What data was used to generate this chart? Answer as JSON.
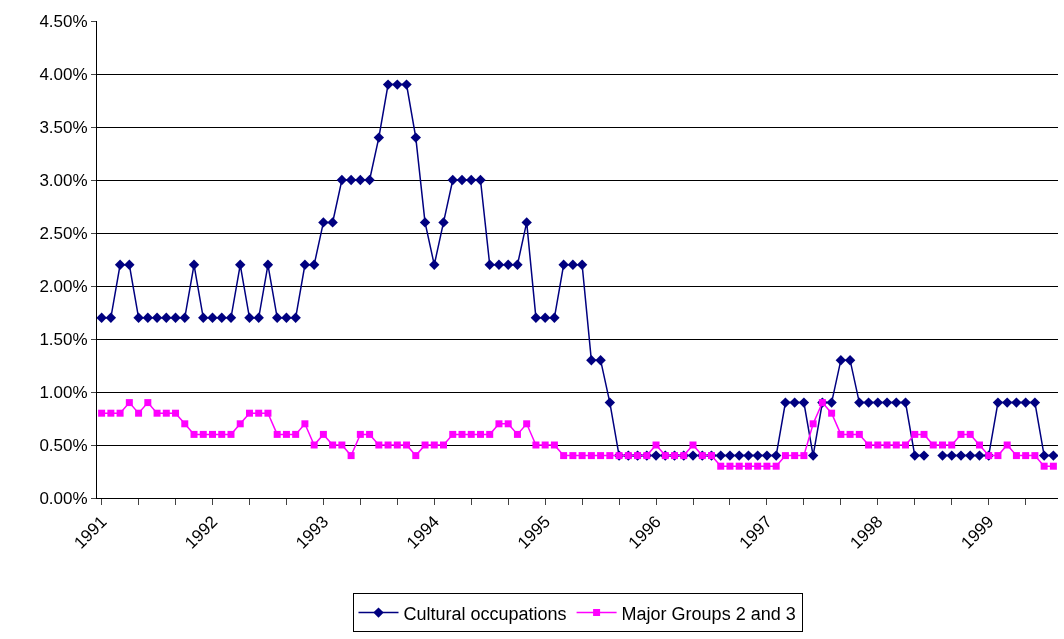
{
  "chart_data": {
    "type": "line",
    "categories": [
      "1991",
      null,
      null,
      null,
      null,
      null,
      null,
      null,
      null,
      null,
      null,
      null,
      "1992",
      null,
      null,
      null,
      null,
      null,
      null,
      null,
      null,
      null,
      null,
      null,
      "1993",
      null,
      null,
      null,
      null,
      null,
      null,
      null,
      null,
      null,
      null,
      null,
      "1994",
      null,
      null,
      null,
      null,
      null,
      null,
      null,
      null,
      null,
      null,
      null,
      "1995",
      null,
      null,
      null,
      null,
      null,
      null,
      null,
      null,
      null,
      null,
      null,
      "1996",
      null,
      null,
      null,
      null,
      null,
      null,
      null,
      null,
      null,
      null,
      null,
      "1997",
      null,
      null,
      null,
      null,
      null,
      null,
      null,
      null,
      null,
      null,
      null,
      "1998",
      null,
      null,
      null,
      null,
      null,
      null,
      null,
      null,
      null,
      null,
      null,
      "1999",
      null,
      null,
      null,
      null,
      null,
      null,
      null
    ],
    "series": [
      {
        "name": "Cultural occupations",
        "color": "#000080",
        "marker": "diamond",
        "values": [
          1.7,
          1.7,
          2.2,
          2.2,
          1.7,
          1.7,
          1.7,
          1.7,
          1.7,
          1.7,
          2.2,
          1.7,
          1.7,
          1.7,
          1.7,
          2.2,
          1.7,
          1.7,
          2.2,
          1.7,
          1.7,
          1.7,
          2.2,
          2.2,
          2.6,
          2.6,
          3.0,
          3.0,
          3.0,
          3.0,
          3.4,
          3.9,
          3.9,
          3.9,
          3.4,
          2.6,
          2.2,
          2.6,
          3.0,
          3.0,
          3.0,
          3.0,
          2.2,
          2.2,
          2.2,
          2.2,
          2.6,
          1.7,
          1.7,
          1.7,
          2.2,
          2.2,
          2.2,
          1.3,
          1.3,
          0.9,
          0.4,
          0.4,
          0.4,
          0.4,
          0.4,
          0.4,
          0.4,
          0.4,
          0.4,
          0.4,
          0.4,
          0.4,
          0.4,
          0.4,
          0.4,
          0.4,
          0.4,
          0.4,
          0.9,
          0.9,
          0.9,
          0.4,
          0.9,
          0.9,
          1.3,
          1.3,
          0.9,
          0.9,
          0.9,
          0.9,
          0.9,
          0.9,
          0.4,
          0.4,
          null,
          0.4,
          0.4,
          0.4,
          0.4,
          0.4,
          0.4,
          0.9,
          0.9,
          0.9,
          0.9,
          0.9,
          0.4,
          0.4
        ]
      },
      {
        "name": "Major Groups 2 and 3",
        "color": "#ff00ff",
        "marker": "square",
        "values": [
          0.8,
          0.8,
          0.8,
          0.9,
          0.8,
          0.9,
          0.8,
          0.8,
          0.8,
          0.7,
          0.6,
          0.6,
          0.6,
          0.6,
          0.6,
          0.7,
          0.8,
          0.8,
          0.8,
          0.6,
          0.6,
          0.6,
          0.7,
          0.5,
          0.6,
          0.5,
          0.5,
          0.4,
          0.6,
          0.6,
          0.5,
          0.5,
          0.5,
          0.5,
          0.4,
          0.5,
          0.5,
          0.5,
          0.6,
          0.6,
          0.6,
          0.6,
          0.6,
          0.7,
          0.7,
          0.6,
          0.7,
          0.5,
          0.5,
          0.5,
          0.4,
          0.4,
          0.4,
          0.4,
          0.4,
          0.4,
          0.4,
          0.4,
          0.4,
          0.4,
          0.5,
          0.4,
          0.4,
          0.4,
          0.5,
          0.4,
          0.4,
          0.3,
          0.3,
          0.3,
          0.3,
          0.3,
          0.3,
          0.3,
          0.4,
          0.4,
          0.4,
          0.7,
          0.9,
          0.8,
          0.6,
          0.6,
          0.6,
          0.5,
          0.5,
          0.5,
          0.5,
          0.5,
          0.6,
          0.6,
          0.5,
          0.5,
          0.5,
          0.6,
          0.6,
          0.5,
          0.4,
          0.4,
          0.5,
          0.4,
          0.4,
          0.4,
          0.3,
          0.3
        ]
      }
    ],
    "ylim": [
      0,
      4.5
    ],
    "yticks": [
      {
        "value": 0,
        "label": "0.00%"
      },
      {
        "value": 0.5,
        "label": "0.50%"
      },
      {
        "value": 1.0,
        "label": "1.00%"
      },
      {
        "value": 1.5,
        "label": "1.50%"
      },
      {
        "value": 2.0,
        "label": "2.00%"
      },
      {
        "value": 2.5,
        "label": "2.50%"
      },
      {
        "value": 3.0,
        "label": "3.00%"
      },
      {
        "value": 3.5,
        "label": "3.50%"
      },
      {
        "value": 4.0,
        "label": "4.00%"
      },
      {
        "value": 4.5,
        "label": "4.50%"
      }
    ],
    "grid": "y",
    "legend": "bottom",
    "line_style": "solid"
  }
}
